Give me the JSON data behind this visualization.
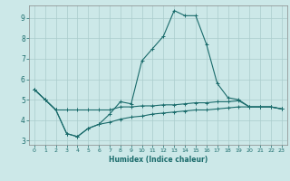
{
  "xlabel": "Humidex (Indice chaleur)",
  "bg_color": "#cce8e8",
  "grid_color": "#aacccc",
  "line_color": "#1a6b6b",
  "spine_color": "#888888",
  "xlim": [
    -0.5,
    23.5
  ],
  "ylim": [
    2.8,
    9.6
  ],
  "xticks": [
    0,
    1,
    2,
    3,
    4,
    5,
    6,
    7,
    8,
    9,
    10,
    11,
    12,
    13,
    14,
    15,
    16,
    17,
    18,
    19,
    20,
    21,
    22,
    23
  ],
  "yticks": [
    3,
    4,
    5,
    6,
    7,
    8,
    9
  ],
  "line1_x": [
    0,
    1,
    2,
    3,
    4,
    5,
    6,
    7,
    8,
    9,
    10,
    11,
    12,
    13,
    14,
    15,
    16,
    17,
    18,
    19,
    20,
    21,
    22,
    23
  ],
  "line1_y": [
    5.5,
    5.0,
    4.5,
    3.35,
    3.2,
    3.6,
    3.8,
    4.3,
    4.9,
    4.8,
    6.9,
    7.5,
    8.1,
    9.35,
    9.1,
    9.1,
    7.7,
    5.8,
    5.1,
    5.0,
    4.65,
    4.65,
    4.65,
    4.55
  ],
  "line2_x": [
    0,
    1,
    2,
    3,
    4,
    5,
    6,
    7,
    8,
    9,
    10,
    11,
    12,
    13,
    14,
    15,
    16,
    17,
    18,
    19,
    20,
    21,
    22,
    23
  ],
  "line2_y": [
    5.5,
    5.0,
    4.5,
    4.5,
    4.5,
    4.5,
    4.5,
    4.5,
    4.65,
    4.65,
    4.7,
    4.7,
    4.75,
    4.75,
    4.8,
    4.85,
    4.85,
    4.9,
    4.9,
    4.95,
    4.65,
    4.65,
    4.65,
    4.55
  ],
  "line3_x": [
    0,
    1,
    2,
    3,
    4,
    5,
    6,
    7,
    8,
    9,
    10,
    11,
    12,
    13,
    14,
    15,
    16,
    17,
    18,
    19,
    20,
    21,
    22,
    23
  ],
  "line3_y": [
    5.5,
    5.0,
    4.5,
    3.35,
    3.2,
    3.6,
    3.8,
    3.9,
    4.05,
    4.15,
    4.2,
    4.3,
    4.35,
    4.4,
    4.45,
    4.5,
    4.5,
    4.55,
    4.6,
    4.65,
    4.65,
    4.65,
    4.65,
    4.55
  ]
}
